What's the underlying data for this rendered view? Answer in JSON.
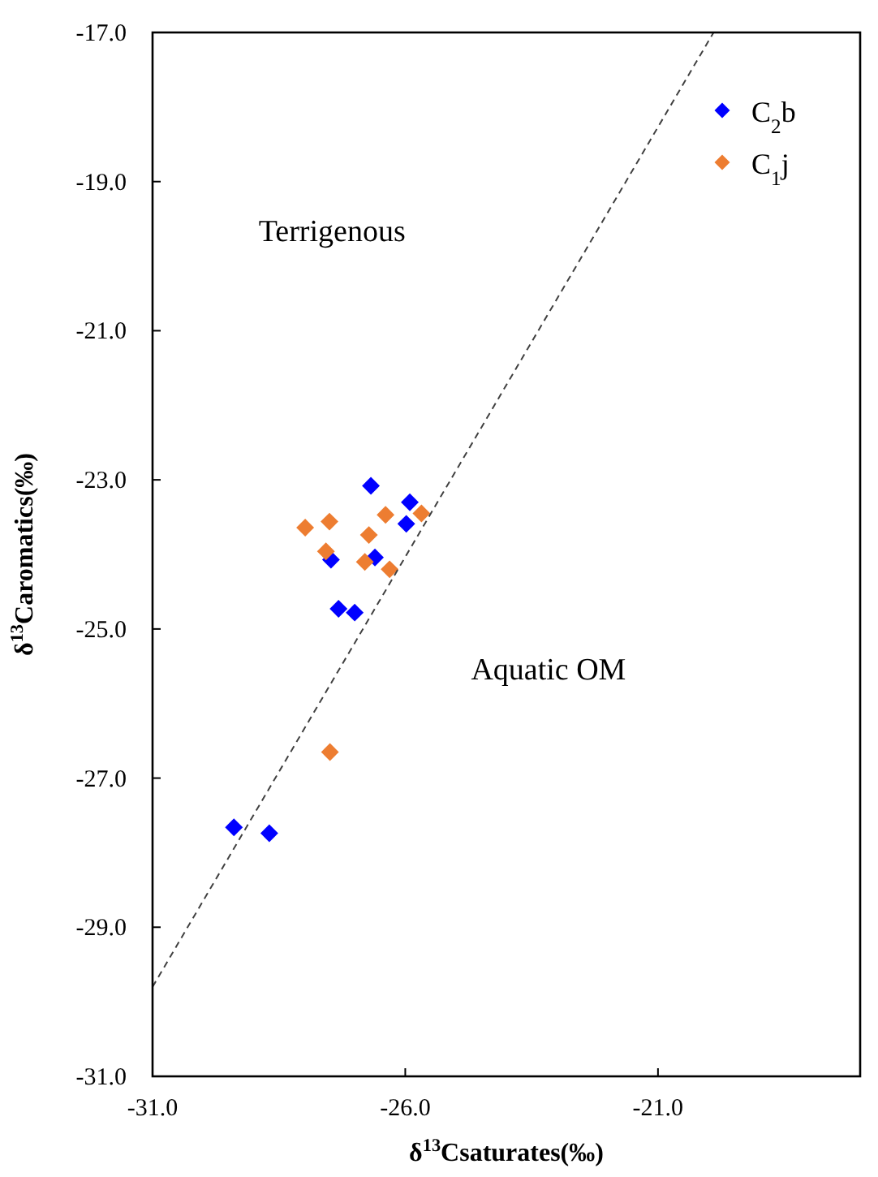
{
  "chart_data": {
    "type": "scatter",
    "xlabel": "δ$^{13}$Csaturates(‰)",
    "ylabel": "δ$^{13}$Caromatics(‰)",
    "xlim": [
      -31,
      -17
    ],
    "ylim": [
      -31,
      -17
    ],
    "xticks": [
      {
        "value": -31,
        "label": "-31.0"
      },
      {
        "value": -26,
        "label": "-26.0"
      },
      {
        "value": -21,
        "label": "-21.0"
      }
    ],
    "yticks": [
      {
        "value": -31,
        "label": "-31.0"
      },
      {
        "value": -29,
        "label": "-29.0"
      },
      {
        "value": -27,
        "label": "-27.0"
      },
      {
        "value": -25,
        "label": "-25.0"
      },
      {
        "value": -23,
        "label": "-23.0"
      },
      {
        "value": -21,
        "label": "-21.0"
      },
      {
        "value": -19,
        "label": "-19.0"
      },
      {
        "value": -17,
        "label": "-17.0"
      }
    ],
    "marker": "diamond",
    "grid": false,
    "legend": "top right",
    "annotations": [
      "Terrigenous",
      "Aquatic OM"
    ],
    "series": [
      {
        "name": "C$_{2}$b",
        "color": "#0000ff",
        "x": [
          -26.68,
          -25.91,
          -25.98,
          -27.47,
          -26.6,
          -27.32,
          -27.0,
          -29.39,
          -28.69
        ],
        "values": [
          -23.08,
          -23.3,
          -23.59,
          -24.07,
          -24.04,
          -24.73,
          -24.78,
          -27.66,
          -27.74
        ]
      },
      {
        "name": "C$_{1}$j",
        "color": "#ed7d31",
        "x": [
          -27.98,
          -27.5,
          -26.39,
          -25.68,
          -26.72,
          -27.57,
          -26.8,
          -26.31,
          -27.49
        ],
        "values": [
          -23.64,
          -23.56,
          -23.47,
          -23.45,
          -23.74,
          -23.96,
          -24.1,
          -24.2,
          -26.65
        ]
      },
      {
        "type": "line",
        "color": "#404040",
        "line_style": "dashed",
        "marker": "none",
        "x": [
          -31,
          -19.9
        ],
        "values": [
          -29.8,
          -17.0
        ]
      }
    ]
  }
}
